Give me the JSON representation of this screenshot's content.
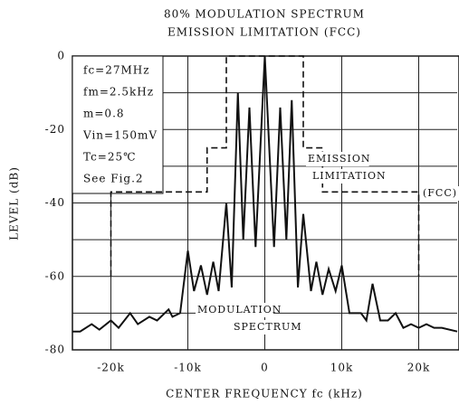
{
  "chart_data": {
    "type": "line",
    "title": "80% MODULATION SPECTRUM",
    "subtitle": "EMISSION LIMITATION (FCC)",
    "xlabel": "CENTER FREQUENCY  fc  (kHz)",
    "ylabel": "LEVEL   (dB)",
    "xlim": [
      -25,
      25
    ],
    "ylim": [
      -80,
      0
    ],
    "xticks": [
      {
        "value": -20,
        "label": "-20k"
      },
      {
        "value": -10,
        "label": "-10k"
      },
      0,
      {
        "value": 10,
        "label": "10k"
      },
      {
        "value": 20,
        "label": "20k"
      }
    ],
    "yticks": [
      -80,
      -60,
      -40,
      -20,
      0
    ],
    "minor_yticks": [
      -70,
      -50,
      -30,
      -10
    ],
    "grid": true,
    "series": [
      {
        "color": "#111111",
        "dash": false,
        "x": [
          -25,
          -24,
          -22.5,
          -21.5,
          -20,
          -19,
          -17.5,
          -16.5,
          -15,
          -14,
          -12.5,
          -12,
          -11,
          -10,
          -9.2,
          -8.3,
          -7.5,
          -6.7,
          -6,
          -5,
          -4.3,
          -3.5,
          -2.8,
          -2,
          -1.2,
          0,
          1.2,
          2,
          2.8,
          3.5,
          4.3,
          5,
          6,
          6.7,
          7.5,
          8.3,
          9.2,
          10,
          11,
          12.5,
          13.2,
          14,
          15,
          16,
          17,
          18,
          19,
          20,
          21,
          22,
          23,
          25
        ],
        "values": [
          -75,
          -75,
          -73,
          -74.5,
          -72,
          -74,
          -70,
          -73,
          -71,
          -72,
          -69,
          -71,
          -70,
          -53,
          -64,
          -57,
          -65,
          -56,
          -64,
          -40,
          -63,
          -10,
          -50,
          -14,
          -52,
          0,
          -52,
          -14,
          -50,
          -12,
          -63,
          -43,
          -64,
          -56,
          -65,
          -58,
          -64,
          -57,
          -70,
          -70,
          -72,
          -62,
          -72,
          -72,
          -70,
          -74,
          -73,
          -74,
          -73,
          -74,
          -74,
          -75
        ]
      },
      {
        "color": "#111111",
        "dash": true,
        "x": [
          -20,
          -20,
          -7.5,
          -7.5,
          -5,
          -5,
          5,
          5,
          7.5,
          7.5,
          20,
          20
        ],
        "values": [
          -60,
          -37,
          -37,
          -25,
          -25,
          0,
          0,
          -25,
          -25,
          -37,
          -37,
          -60
        ]
      }
    ],
    "conditions": [
      "fc=27MHz",
      "fm=2.5kHz",
      "m=0.8",
      "Vin=150mV",
      "Tc=25℃",
      "See Fig.2"
    ],
    "annotations": [
      "EMISSION",
      "LIMITATION",
      "(FCC)",
      "MODULATION",
      "SPECTRUM"
    ]
  }
}
